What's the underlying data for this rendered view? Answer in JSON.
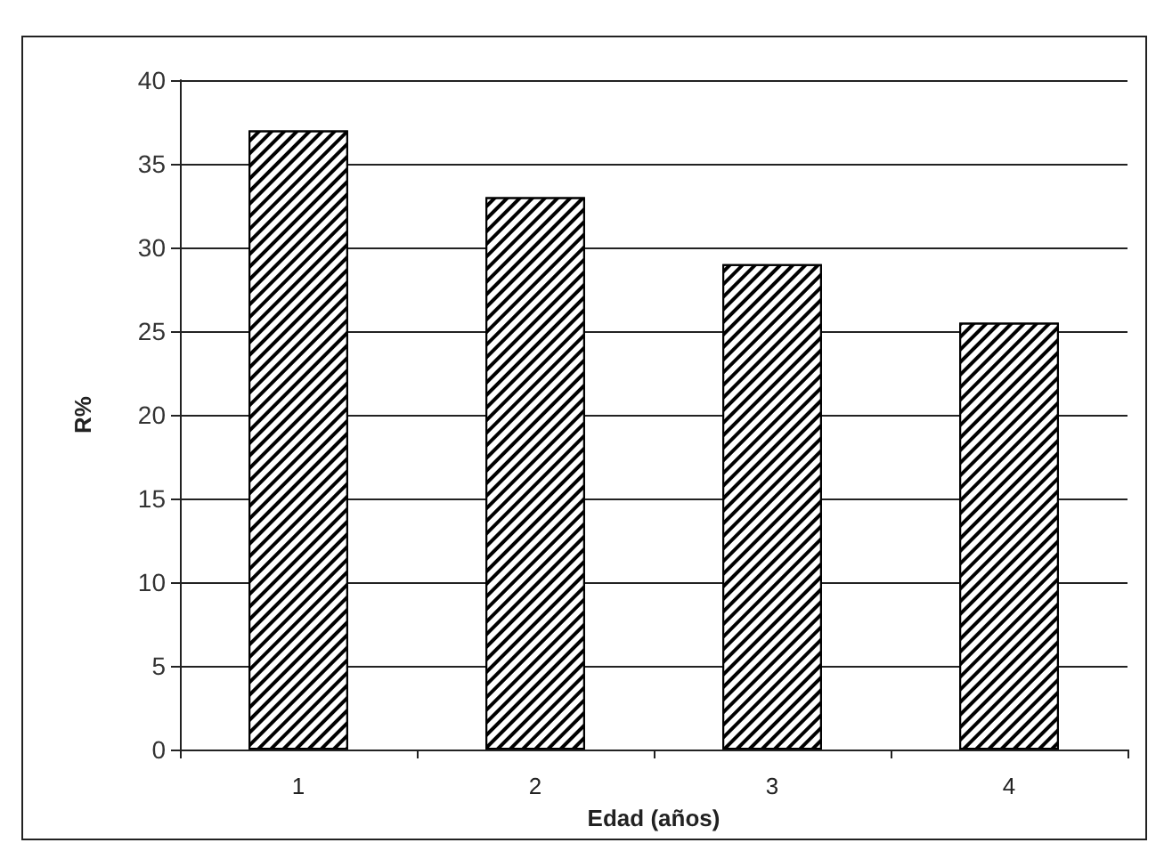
{
  "chart_data": {
    "type": "bar",
    "xlabel": "Edad (años)",
    "ylabel": "R%",
    "categories": [
      "1",
      "2",
      "3",
      "4"
    ],
    "values": [
      37,
      33,
      29,
      25.5
    ],
    "color": "#000000",
    "ylim": [
      0,
      40
    ],
    "yticks": [
      0,
      5,
      10,
      15,
      20,
      25,
      30,
      35,
      40
    ],
    "grid": "y"
  }
}
